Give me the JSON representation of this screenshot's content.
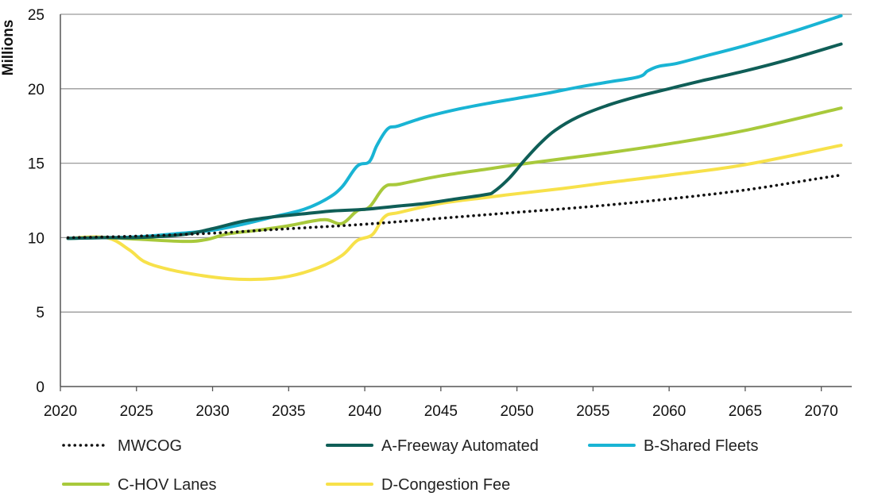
{
  "chart_data": {
    "type": "line",
    "title": "",
    "xlabel": "",
    "ylabel": "Millions",
    "xlim": [
      2020,
      2072
    ],
    "ylim": [
      0,
      25
    ],
    "x_ticks": [
      2020,
      2025,
      2030,
      2035,
      2040,
      2045,
      2050,
      2055,
      2060,
      2065,
      2070
    ],
    "y_ticks": [
      0,
      5,
      10,
      15,
      20,
      25
    ],
    "grid": "horizontal",
    "legend_position": "bottom",
    "series": [
      {
        "name": "MWCOG",
        "color": "#111111",
        "style": "dotted",
        "x": [
          2020.5,
          2025,
          2030,
          2035,
          2040,
          2045,
          2050,
          2055,
          2060,
          2065,
          2070,
          2071.3
        ],
        "values": [
          10.0,
          10.1,
          10.3,
          10.6,
          10.9,
          11.3,
          11.7,
          12.1,
          12.6,
          13.2,
          14.0,
          14.2
        ]
      },
      {
        "name": "A-Freeway Automated",
        "color": "#0f5e57",
        "style": "solid",
        "x": [
          2020.5,
          2023,
          2025,
          2028,
          2030,
          2032,
          2034,
          2036,
          2038,
          2040,
          2042,
          2044,
          2046,
          2048,
          2048.5,
          2049.5,
          2050.5,
          2051.5,
          2052.5,
          2054,
          2056,
          2058,
          2060,
          2062,
          2065,
          2068,
          2071.3
        ],
        "values": [
          9.95,
          10.0,
          10.0,
          10.2,
          10.6,
          11.1,
          11.4,
          11.6,
          11.8,
          11.9,
          12.1,
          12.3,
          12.6,
          12.9,
          13.1,
          14.0,
          15.2,
          16.3,
          17.2,
          18.1,
          18.9,
          19.5,
          20.0,
          20.5,
          21.2,
          22.0,
          23.0
        ]
      },
      {
        "name": "B-Shared Fleets",
        "color": "#19b4d4",
        "style": "solid",
        "x": [
          2020.5,
          2023,
          2025,
          2028,
          2030,
          2032,
          2034,
          2036,
          2037.5,
          2038.5,
          2039.5,
          2040.3,
          2040.8,
          2041.5,
          2042.2,
          2044,
          2046,
          2048,
          2050,
          2052,
          2054,
          2056,
          2058,
          2058.6,
          2059.3,
          2060.5,
          2062,
          2065,
          2068,
          2071.3
        ],
        "values": [
          9.95,
          10.0,
          10.05,
          10.3,
          10.5,
          10.9,
          11.4,
          11.9,
          12.6,
          13.4,
          14.8,
          15.1,
          16.2,
          17.3,
          17.5,
          18.1,
          18.6,
          19.0,
          19.35,
          19.7,
          20.1,
          20.45,
          20.8,
          21.2,
          21.5,
          21.7,
          22.1,
          22.9,
          23.8,
          24.9
        ]
      },
      {
        "name": "C-HOV Lanes",
        "color": "#a8c93b",
        "style": "solid",
        "x": [
          2020.5,
          2023,
          2025,
          2028,
          2029.5,
          2031,
          2033,
          2035,
          2036.5,
          2037.5,
          2038.5,
          2039.5,
          2040.3,
          2041.3,
          2042.3,
          2045,
          2048,
          2050,
          2053,
          2056,
          2060,
          2065,
          2071.3
        ],
        "values": [
          9.95,
          10.0,
          9.9,
          9.75,
          9.85,
          10.25,
          10.5,
          10.8,
          11.1,
          11.2,
          10.95,
          11.8,
          12.05,
          13.4,
          13.6,
          14.15,
          14.6,
          14.9,
          15.3,
          15.7,
          16.3,
          17.2,
          18.7
        ]
      },
      {
        "name": "D-Congestion Fee",
        "color": "#f7e14a",
        "style": "solid",
        "x": [
          2020.5,
          2023,
          2024.5,
          2025.5,
          2027,
          2029,
          2031,
          2033,
          2035,
          2037,
          2038.5,
          2039.5,
          2040.5,
          2041.3,
          2042.3,
          2045,
          2048,
          2050,
          2053,
          2056,
          2060,
          2065,
          2071.3
        ],
        "values": [
          9.95,
          10.0,
          9.2,
          8.4,
          7.9,
          7.5,
          7.25,
          7.2,
          7.4,
          8.0,
          8.8,
          9.8,
          10.2,
          11.4,
          11.7,
          12.3,
          12.7,
          12.95,
          13.3,
          13.7,
          14.2,
          14.9,
          16.2
        ]
      }
    ]
  }
}
